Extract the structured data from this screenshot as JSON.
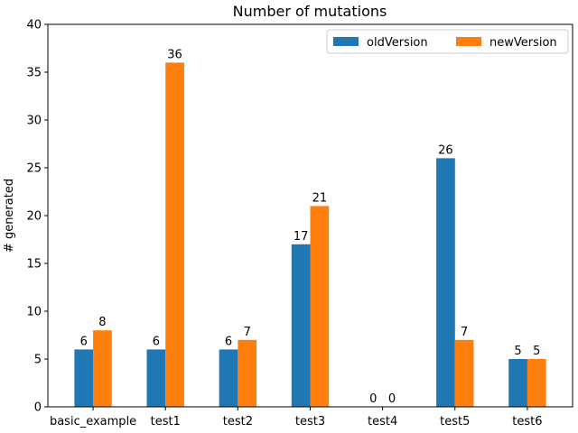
{
  "chart_data": {
    "type": "bar",
    "title": "Number of mutations",
    "xlabel": "",
    "ylabel": "# generated",
    "categories": [
      "basic_example",
      "test1",
      "test2",
      "test3",
      "test4",
      "test5",
      "test6"
    ],
    "series": [
      {
        "name": "oldVersion",
        "color": "#1f77b4",
        "values": [
          6,
          6,
          6,
          17,
          0,
          26,
          5
        ]
      },
      {
        "name": "newVersion",
        "color": "#ff7f0e",
        "values": [
          8,
          36,
          7,
          21,
          0,
          7,
          5
        ]
      }
    ],
    "ylim": [
      0,
      40
    ],
    "yticks": [
      0,
      5,
      10,
      15,
      20,
      25,
      30,
      35,
      40
    ],
    "grid": false,
    "legend_position": "upper-right",
    "legend_columns": 2,
    "data_labels": true
  }
}
